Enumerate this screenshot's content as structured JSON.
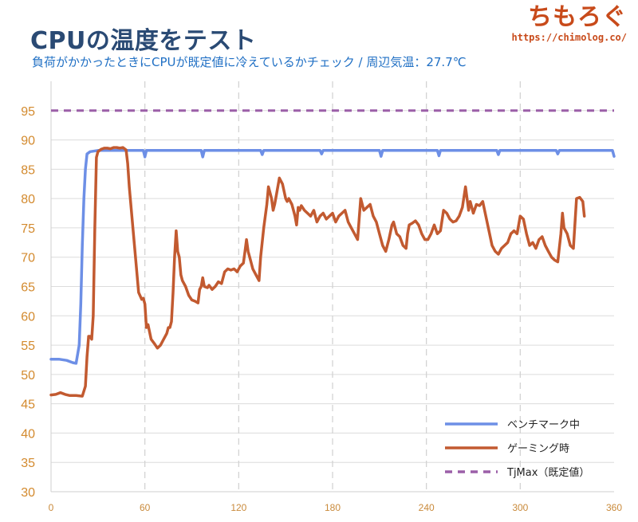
{
  "title": "CPUの温度をテスト",
  "subtitle": "負荷がかかったときにCPUが既定値に冷えているかチェック / 周辺気温：27.7℃",
  "brand": {
    "name": "ちもろぐ",
    "url": "https://chimolog.co/"
  },
  "colors": {
    "benchmark": "#6d8fe6",
    "gaming": "#c25a30",
    "tjmax": "#9b5fa8",
    "ytick": "#d38a2e",
    "xtick": "#c98a3b",
    "grid_h": "#dcdcdc",
    "grid_v": "#d0d0d0",
    "axis": "#cfcfcf"
  },
  "chart_data": {
    "type": "line",
    "xlim": [
      0,
      360
    ],
    "ylim": [
      30,
      95
    ],
    "yticks": [
      30,
      35,
      40,
      45,
      50,
      55,
      60,
      65,
      70,
      75,
      80,
      85,
      90,
      95
    ],
    "xticks": [
      0,
      60,
      120,
      180,
      240,
      300,
      360
    ],
    "grid": {
      "horizontal": true,
      "vertical": "dashed"
    },
    "legend_position": "bottom-right",
    "series": [
      {
        "name": "ベンチマーク中",
        "key": "benchmark",
        "style": "solid",
        "points": [
          [
            0,
            52.6
          ],
          [
            5,
            52.6
          ],
          [
            10,
            52.4
          ],
          [
            14,
            52.0
          ],
          [
            16,
            51.9
          ],
          [
            18,
            55
          ],
          [
            19,
            62
          ],
          [
            20,
            72
          ],
          [
            21,
            80
          ],
          [
            22,
            85
          ],
          [
            23,
            87.6
          ],
          [
            25,
            88.0
          ],
          [
            30,
            88.2
          ],
          [
            59,
            88.2
          ],
          [
            60,
            87.1
          ],
          [
            61,
            88.2
          ],
          [
            96,
            88.2
          ],
          [
            97,
            87.1
          ],
          [
            98,
            88.2
          ],
          [
            134,
            88.2
          ],
          [
            135,
            87.5
          ],
          [
            136,
            88.2
          ],
          [
            172,
            88.2
          ],
          [
            173,
            87.6
          ],
          [
            174,
            88.2
          ],
          [
            210,
            88.2
          ],
          [
            211,
            87.2
          ],
          [
            212,
            88.2
          ],
          [
            247,
            88.2
          ],
          [
            248,
            87.3
          ],
          [
            249,
            88.2
          ],
          [
            285,
            88.2
          ],
          [
            286,
            87.5
          ],
          [
            287,
            88.2
          ],
          [
            323,
            88.2
          ],
          [
            324,
            87.6
          ],
          [
            325,
            88.2
          ],
          [
            359,
            88.2
          ],
          [
            360,
            87.2
          ]
        ]
      },
      {
        "name": "ゲーミング時",
        "key": "gaming",
        "style": "solid",
        "points": [
          [
            0,
            46.5
          ],
          [
            3,
            46.6
          ],
          [
            6,
            46.9
          ],
          [
            9,
            46.6
          ],
          [
            12,
            46.4
          ],
          [
            16,
            46.4
          ],
          [
            20,
            46.3
          ],
          [
            22,
            48
          ],
          [
            23,
            53
          ],
          [
            24,
            56.5
          ],
          [
            25,
            56.5
          ],
          [
            26,
            56
          ],
          [
            27,
            60
          ],
          [
            28,
            75
          ],
          [
            29,
            87
          ],
          [
            30,
            88
          ],
          [
            32,
            88.4
          ],
          [
            34,
            88.6
          ],
          [
            36,
            88.6
          ],
          [
            38,
            88.5
          ],
          [
            40,
            88.7
          ],
          [
            42,
            88.7
          ],
          [
            44,
            88.6
          ],
          [
            46,
            88.7
          ],
          [
            48,
            88.3
          ],
          [
            49,
            86
          ],
          [
            50,
            82
          ],
          [
            52,
            76
          ],
          [
            54,
            70
          ],
          [
            56,
            64
          ],
          [
            58,
            62.8
          ],
          [
            59,
            63
          ],
          [
            60,
            62
          ],
          [
            61,
            58
          ],
          [
            62,
            58.5
          ],
          [
            64,
            56
          ],
          [
            66,
            55.3
          ],
          [
            68,
            54.5
          ],
          [
            70,
            55
          ],
          [
            72,
            56
          ],
          [
            74,
            57
          ],
          [
            75,
            58
          ],
          [
            76,
            58
          ],
          [
            77,
            59
          ],
          [
            78,
            64
          ],
          [
            79,
            70
          ],
          [
            80,
            74.5
          ],
          [
            81,
            71
          ],
          [
            82,
            70
          ],
          [
            83,
            67
          ],
          [
            84,
            66
          ],
          [
            86,
            65
          ],
          [
            88,
            63.5
          ],
          [
            90,
            62.7
          ],
          [
            92,
            62.5
          ],
          [
            94,
            62.2
          ],
          [
            95,
            64.5
          ],
          [
            96,
            65
          ],
          [
            97,
            66.5
          ],
          [
            98,
            65
          ],
          [
            100,
            64.8
          ],
          [
            101,
            65.2
          ],
          [
            103,
            64.5
          ],
          [
            105,
            65
          ],
          [
            107,
            65.8
          ],
          [
            109,
            65.5
          ],
          [
            111,
            67.5
          ],
          [
            113,
            68
          ],
          [
            115,
            67.8
          ],
          [
            117,
            68
          ],
          [
            119,
            67.5
          ],
          [
            121,
            68.5
          ],
          [
            123,
            69
          ],
          [
            124,
            71
          ],
          [
            125,
            73
          ],
          [
            126,
            71
          ],
          [
            127,
            70
          ],
          [
            129,
            68
          ],
          [
            131,
            67
          ],
          [
            133,
            66
          ],
          [
            134,
            70
          ],
          [
            136,
            75
          ],
          [
            138,
            79
          ],
          [
            139,
            82
          ],
          [
            140,
            81
          ],
          [
            141,
            80
          ],
          [
            142,
            78
          ],
          [
            143,
            79
          ],
          [
            144,
            80.5
          ],
          [
            146,
            83.5
          ],
          [
            148,
            82.5
          ],
          [
            150,
            80
          ],
          [
            151,
            79.5
          ],
          [
            152,
            80
          ],
          [
            154,
            79
          ],
          [
            155,
            78
          ],
          [
            156,
            77
          ],
          [
            157,
            75.5
          ],
          [
            158,
            78.5
          ],
          [
            159,
            78
          ],
          [
            160,
            78.8
          ],
          [
            162,
            78
          ],
          [
            164,
            77.5
          ],
          [
            166,
            77
          ],
          [
            168,
            78
          ],
          [
            169,
            77
          ],
          [
            170,
            76
          ],
          [
            172,
            77
          ],
          [
            174,
            77.5
          ],
          [
            176,
            76.5
          ],
          [
            178,
            77
          ],
          [
            180,
            77.5
          ],
          [
            182,
            76
          ],
          [
            184,
            77
          ],
          [
            186,
            77.5
          ],
          [
            188,
            78
          ],
          [
            190,
            76
          ],
          [
            192,
            75
          ],
          [
            194,
            74
          ],
          [
            196,
            73
          ],
          [
            198,
            80
          ],
          [
            200,
            78
          ],
          [
            202,
            78.5
          ],
          [
            204,
            79
          ],
          [
            206,
            77
          ],
          [
            208,
            76
          ],
          [
            210,
            74
          ],
          [
            212,
            72
          ],
          [
            214,
            71
          ],
          [
            216,
            73
          ],
          [
            218,
            75.5
          ],
          [
            219,
            76
          ],
          [
            221,
            74
          ],
          [
            223,
            73.5
          ],
          [
            225,
            72
          ],
          [
            227,
            71.5
          ],
          [
            228,
            74
          ],
          [
            229,
            75.5
          ],
          [
            231,
            75.8
          ],
          [
            233,
            76.2
          ],
          [
            235,
            75.5
          ],
          [
            237,
            74
          ],
          [
            239,
            73
          ],
          [
            241,
            73
          ],
          [
            243,
            74
          ],
          [
            245,
            75.5
          ],
          [
            247,
            74
          ],
          [
            249,
            74.5
          ],
          [
            251,
            78
          ],
          [
            253,
            77.5
          ],
          [
            255,
            76.5
          ],
          [
            257,
            76
          ],
          [
            259,
            76.2
          ],
          [
            261,
            77
          ],
          [
            263,
            78.5
          ],
          [
            265,
            82
          ],
          [
            267,
            78
          ],
          [
            268,
            79.5
          ],
          [
            270,
            77.5
          ],
          [
            272,
            79
          ],
          [
            274,
            78.8
          ],
          [
            276,
            79.5
          ],
          [
            278,
            77
          ],
          [
            280,
            74.5
          ],
          [
            282,
            72
          ],
          [
            284,
            71
          ],
          [
            286,
            70.5
          ],
          [
            288,
            71.5
          ],
          [
            290,
            72
          ],
          [
            292,
            72.5
          ],
          [
            294,
            74
          ],
          [
            296,
            74.5
          ],
          [
            298,
            74
          ],
          [
            300,
            77
          ],
          [
            302,
            76.5
          ],
          [
            304,
            74
          ],
          [
            306,
            72
          ],
          [
            308,
            72.5
          ],
          [
            310,
            71.5
          ],
          [
            312,
            73
          ],
          [
            314,
            73.5
          ],
          [
            316,
            72
          ],
          [
            318,
            71
          ],
          [
            320,
            70
          ],
          [
            322,
            69.5
          ],
          [
            324,
            69.2
          ],
          [
            326,
            74
          ],
          [
            327,
            77.5
          ],
          [
            328,
            75
          ],
          [
            330,
            74
          ],
          [
            332,
            72
          ],
          [
            334,
            71.5
          ],
          [
            336,
            80
          ],
          [
            338,
            80.2
          ],
          [
            340,
            79.5
          ],
          [
            341,
            77
          ]
        ]
      },
      {
        "name": "TjMax（既定値）",
        "key": "tjmax",
        "style": "dashed",
        "points": [
          [
            0,
            95
          ],
          [
            360,
            95
          ]
        ]
      }
    ]
  }
}
